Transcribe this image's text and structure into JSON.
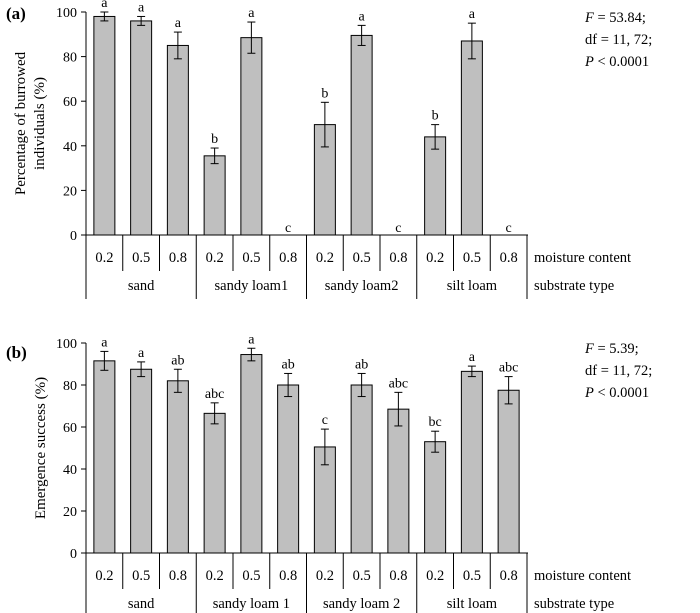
{
  "chart_data": [
    {
      "type": "bar",
      "panel_label": "(a)",
      "ylabel_lines": [
        "Percentage of burrowed",
        "individuals (%)"
      ],
      "ylim": [
        0,
        100
      ],
      "yticks": [
        "0",
        "20",
        "40",
        "60",
        "80",
        "100"
      ],
      "moisture_levels": [
        "0.2",
        "0.5",
        "0.8",
        "0.2",
        "0.5",
        "0.8",
        "0.2",
        "0.5",
        "0.8",
        "0.2",
        "0.5",
        "0.8"
      ],
      "substrates": [
        "sand",
        "sandy loam1",
        "sandy loam2",
        "silt loam"
      ],
      "row_label_moisture": "moisture content",
      "row_label_substrate": "substrate type",
      "values": [
        98,
        96,
        85,
        35.5,
        88.5,
        0,
        49.5,
        89.5,
        0,
        44,
        87,
        0
      ],
      "errors": [
        2,
        2,
        6,
        3.5,
        7,
        0,
        10,
        4.5,
        0,
        5.5,
        8,
        0
      ],
      "letters": [
        "a",
        "a",
        "a",
        "b",
        "a",
        "c",
        "b",
        "a",
        "c",
        "b",
        "a",
        "c"
      ],
      "stats": {
        "F": "F",
        "f_value": " = 53.84;",
        "df": "df = 11, 72;",
        "P": "P",
        "p_value": " < 0.0001"
      }
    },
    {
      "type": "bar",
      "panel_label": "(b)",
      "ylabel_lines": [
        "Emergence success  (%)"
      ],
      "ylim": [
        0,
        100
      ],
      "yticks": [
        "0",
        "20",
        "40",
        "60",
        "80",
        "100"
      ],
      "moisture_levels": [
        "0.2",
        "0.5",
        "0.8",
        "0.2",
        "0.5",
        "0.8",
        "0.2",
        "0.5",
        "0.8",
        "0.2",
        "0.5",
        "0.8"
      ],
      "substrates": [
        "sand",
        "sandy loam 1",
        "sandy loam 2",
        "silt loam"
      ],
      "row_label_moisture": "moisture content",
      "row_label_substrate": "substrate type",
      "values": [
        91.5,
        87.5,
        82,
        66.5,
        94.5,
        80,
        50.5,
        80,
        68.5,
        53,
        86.5,
        77.5
      ],
      "errors": [
        4.5,
        3.5,
        5.5,
        5,
        3,
        5.5,
        8.5,
        5.5,
        8,
        5,
        2.5,
        6.5
      ],
      "letters": [
        "a",
        "a",
        "ab",
        "abc",
        "a",
        "ab",
        "c",
        "ab",
        "abc",
        "bc",
        "a",
        "abc"
      ],
      "stats": {
        "F": "F",
        "f_value": " = 5.39;",
        "df": "df = 11, 72;",
        "P": "P",
        "p_value": " < 0.0001"
      }
    }
  ]
}
